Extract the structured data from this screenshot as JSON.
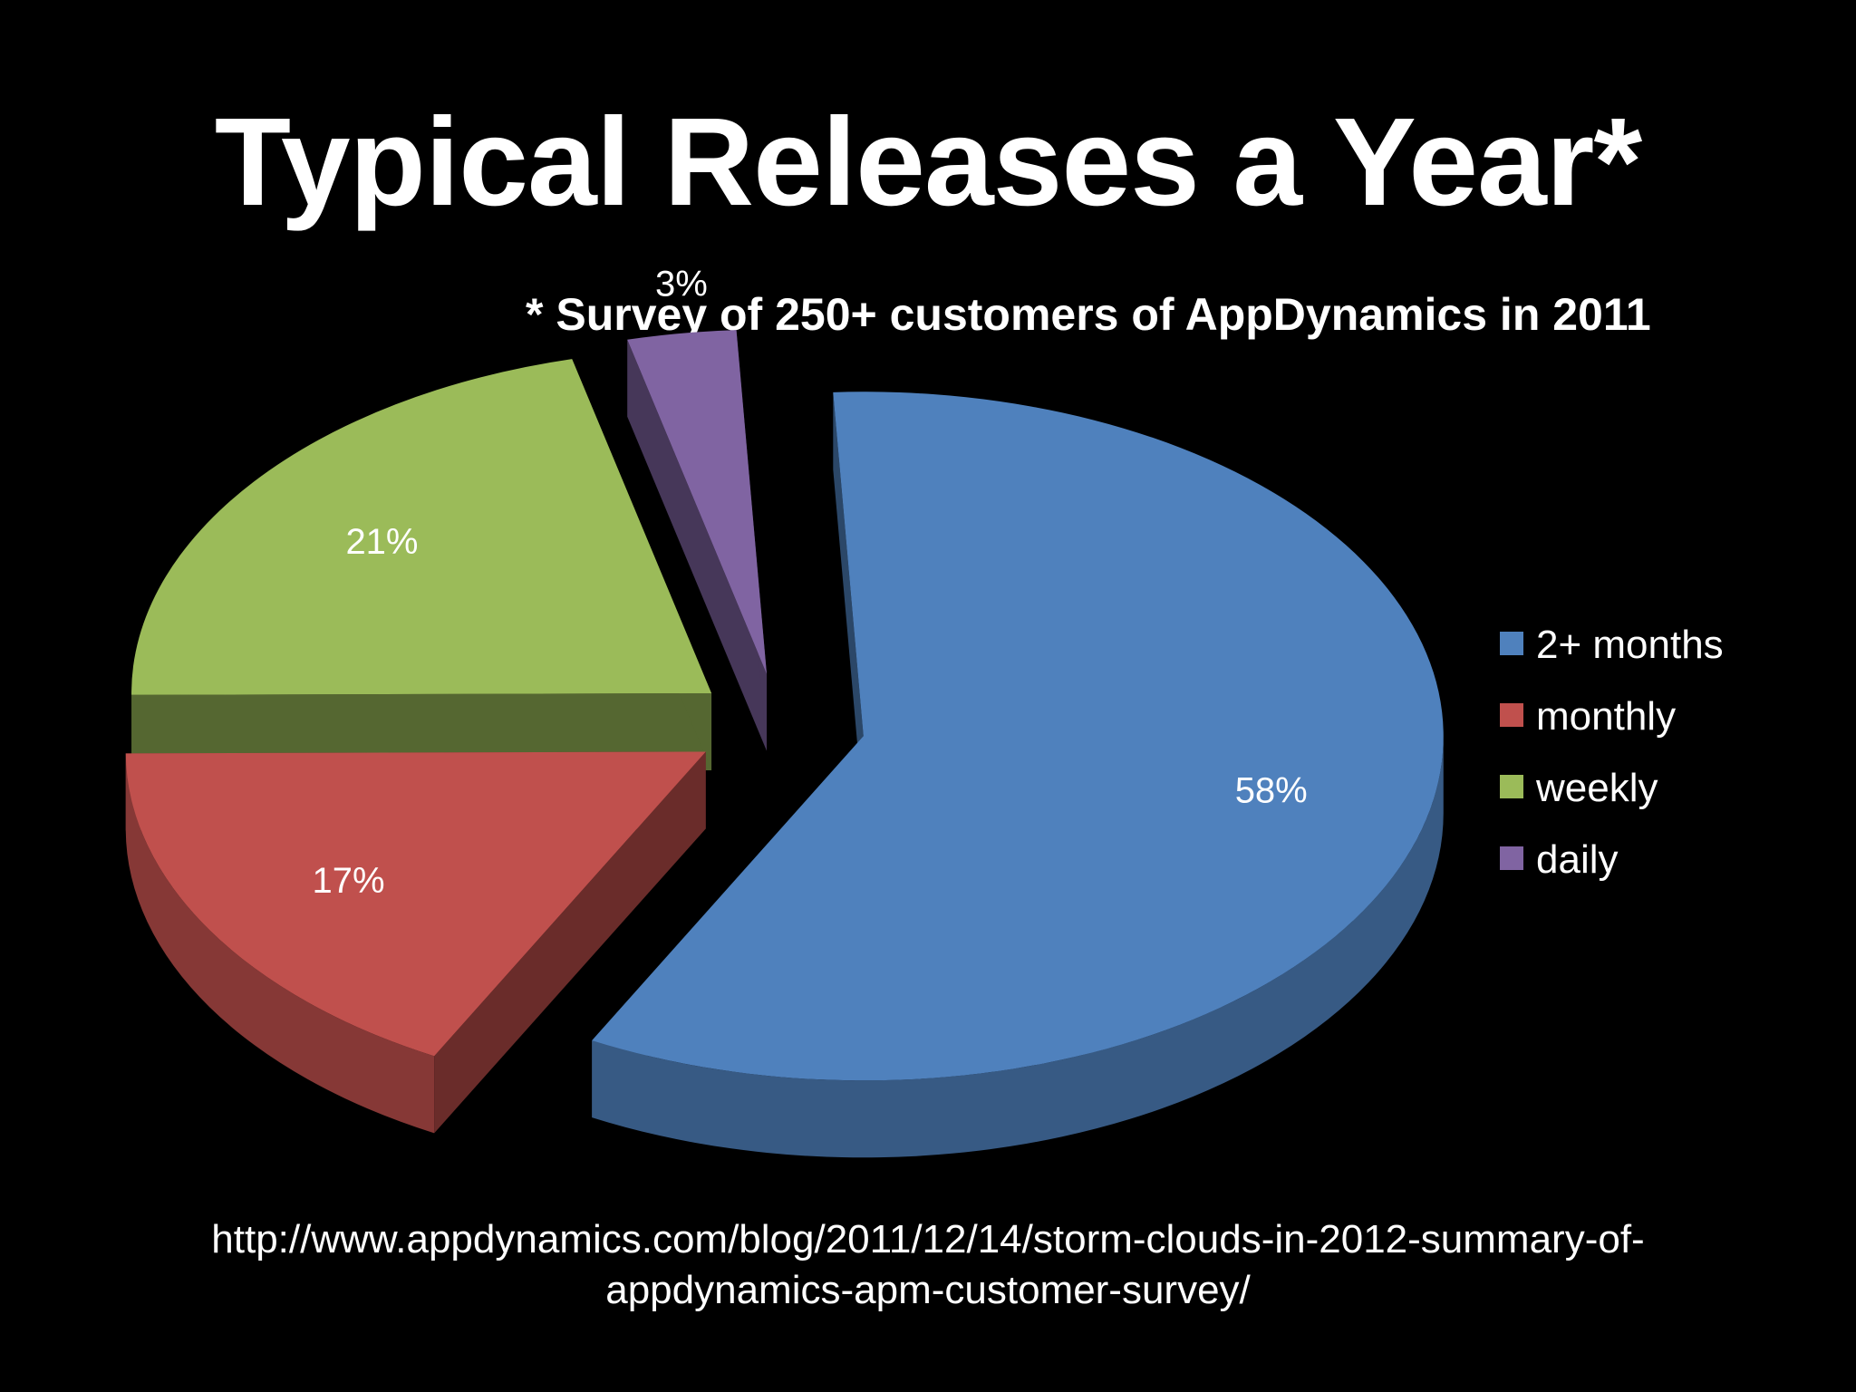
{
  "slide": {
    "title": "Typical Releases a Year*",
    "subtitle": "* Survey of 250+ customers of AppDynamics in 2011",
    "footer_line1": "http://www.appdynamics.com/blog/2011/12/14/storm-clouds-in-2012-summary-of-",
    "footer_line2": "appdynamics-apm-customer-survey/"
  },
  "chart_data": {
    "type": "pie",
    "style": "3d-exploded",
    "legend_position": "right",
    "categories": [
      "2+ months",
      "monthly",
      "weekly",
      "daily"
    ],
    "values": [
      58,
      17,
      21,
      3
    ],
    "labels": [
      "58%",
      "17%",
      "21%",
      "3%"
    ],
    "colors": [
      "#4F81BD",
      "#C0504D",
      "#9BBB59",
      "#8064A2"
    ]
  }
}
